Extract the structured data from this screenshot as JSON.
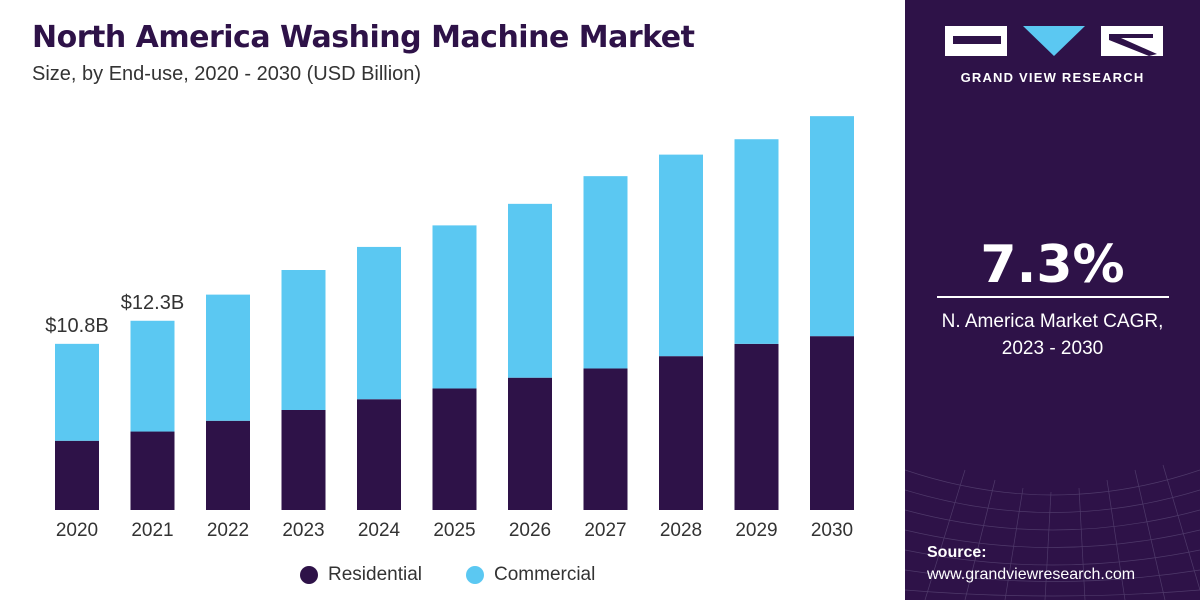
{
  "title": "North America Washing Machine Market",
  "subtitle": "Size, by End-use, 2020 - 2030 (USD Billion)",
  "colors": {
    "residential": "#2e1248",
    "commercial": "#5bc8f2",
    "panel": "#2e1248"
  },
  "chart_data": {
    "type": "bar",
    "stacked": true,
    "categories": [
      "2020",
      "2021",
      "2022",
      "2023",
      "2024",
      "2025",
      "2026",
      "2027",
      "2028",
      "2029",
      "2030"
    ],
    "series": [
      {
        "name": "Residential",
        "values": [
          4.5,
          5.1,
          5.8,
          6.5,
          7.2,
          7.9,
          8.6,
          9.2,
          10.0,
          10.8,
          11.3
        ]
      },
      {
        "name": "Commercial",
        "values": [
          6.3,
          7.2,
          8.2,
          9.1,
          9.9,
          10.6,
          11.3,
          12.5,
          13.1,
          13.3,
          14.3
        ]
      }
    ],
    "annotations": [
      {
        "category": "2020",
        "text": "$10.8B"
      },
      {
        "category": "2021",
        "text": "$12.3B"
      }
    ],
    "ylim": [
      0,
      26
    ],
    "grid": false,
    "legend_position": "bottom"
  },
  "legend": {
    "residential": "Residential",
    "commercial": "Commercial"
  },
  "panel": {
    "brand": "GRAND VIEW RESEARCH",
    "cagr_value": "7.3%",
    "cagr_label_line1": "N. America Market CAGR,",
    "cagr_label_line2": "2023 - 2030",
    "source_label": "Source:",
    "source_url": "www.grandviewresearch.com"
  }
}
